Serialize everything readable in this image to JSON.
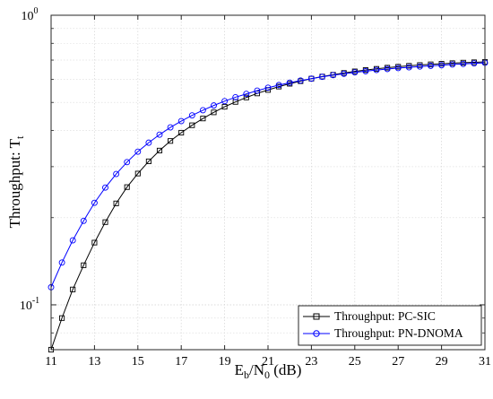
{
  "chart_data": {
    "type": "line",
    "xlabel": {
      "main": "E",
      "sub1": "b",
      "mid": "/N",
      "sub2": "0",
      "tail": " (dB)"
    },
    "ylabel": {
      "main": "Throughput: T",
      "sub": "t"
    },
    "x_ticks": [
      "11",
      "13",
      "15",
      "17",
      "19",
      "21",
      "23",
      "25",
      "27",
      "29",
      "31"
    ],
    "y_ticks": [
      {
        "base": "10",
        "exp": "-1",
        "value": 0.1
      },
      {
        "base": "10",
        "exp": "0",
        "value": 1
      }
    ],
    "xlim": [
      11,
      31
    ],
    "ylim": [
      0.07,
      1
    ],
    "y_scale": "log",
    "grid": true,
    "legend_position": "bottom-right",
    "x": [
      11.0,
      11.5,
      12.0,
      12.5,
      13.0,
      13.5,
      14.0,
      14.5,
      15.0,
      15.5,
      16.0,
      16.5,
      17.0,
      17.5,
      18.0,
      18.5,
      19.0,
      19.5,
      20.0,
      20.5,
      21.0,
      21.5,
      22.0,
      22.5,
      23.0,
      23.5,
      24.0,
      24.5,
      25.0,
      25.5,
      26.0,
      26.5,
      27.0,
      27.5,
      28.0,
      28.5,
      29.0,
      29.5,
      30.0,
      30.5,
      31.0
    ],
    "series": [
      {
        "name": "Throughput: PC-SIC",
        "color": "#000000",
        "marker": "square",
        "values": [
          0.07,
          0.09,
          0.113,
          0.137,
          0.164,
          0.193,
          0.224,
          0.255,
          0.284,
          0.313,
          0.341,
          0.368,
          0.393,
          0.417,
          0.44,
          0.462,
          0.483,
          0.502,
          0.52,
          0.537,
          0.552,
          0.567,
          0.58,
          0.592,
          0.604,
          0.614,
          0.623,
          0.632,
          0.64,
          0.647,
          0.653,
          0.659,
          0.664,
          0.669,
          0.673,
          0.677,
          0.68,
          0.683,
          0.686,
          0.688,
          0.69
        ]
      },
      {
        "name": "Throughput: PN-DNOMA",
        "color": "#0000ff",
        "marker": "circle",
        "values": [
          0.115,
          0.14,
          0.167,
          0.195,
          0.225,
          0.254,
          0.283,
          0.311,
          0.338,
          0.363,
          0.387,
          0.41,
          0.431,
          0.451,
          0.47,
          0.488,
          0.505,
          0.521,
          0.535,
          0.549,
          0.562,
          0.574,
          0.585,
          0.595,
          0.604,
          0.613,
          0.621,
          0.628,
          0.635,
          0.641,
          0.647,
          0.652,
          0.657,
          0.661,
          0.665,
          0.669,
          0.672,
          0.676,
          0.679,
          0.682,
          0.685
        ]
      }
    ]
  }
}
